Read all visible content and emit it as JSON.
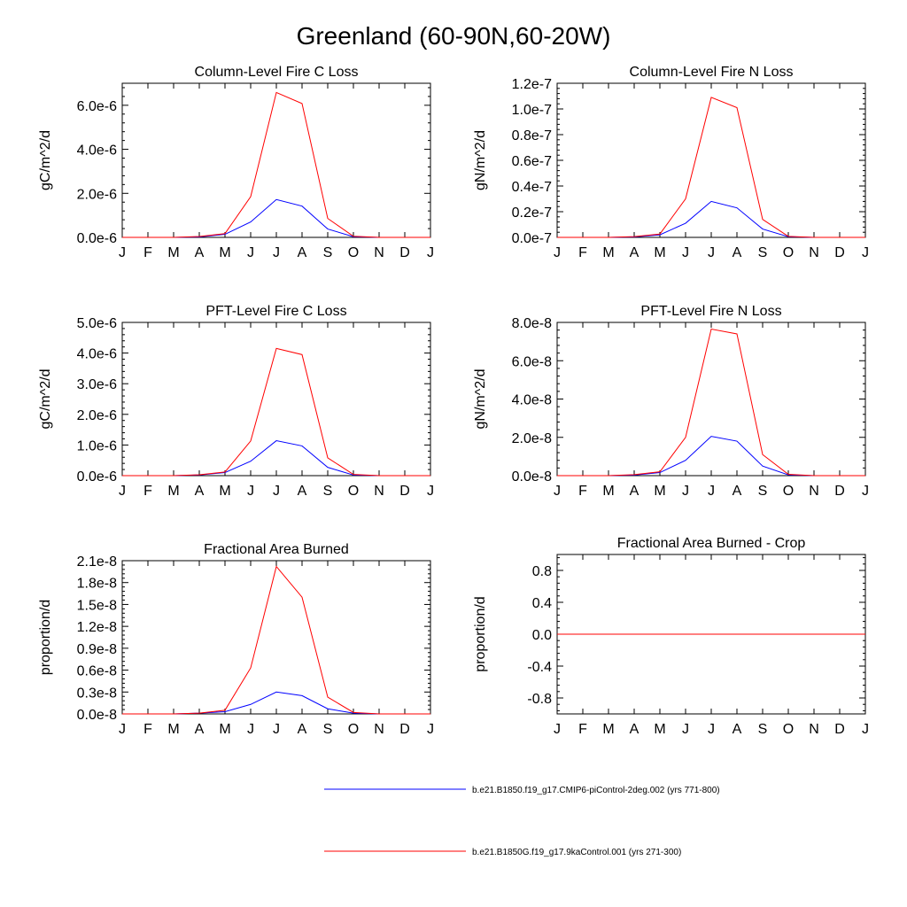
{
  "figure_title": "Greenland (60-90N,60-20W)",
  "colors": {
    "series_blue": "#0000ff",
    "series_red": "#ff0000",
    "axis": "#000000"
  },
  "legend": {
    "entries": [
      {
        "label": "b.e21.B1850.f19_g17.CMIP6-piControl-2deg.002 (yrs 771-800)",
        "color": "#0000ff"
      },
      {
        "label": "b.e21.B1850G.f19_g17.9kaControl.001 (yrs 271-300)",
        "color": "#ff0000"
      }
    ]
  },
  "chart_data": [
    {
      "type": "line",
      "title": "Column-Level Fire C Loss",
      "xlabel": "",
      "ylabel": "gC/m^2/d",
      "categories": [
        "J",
        "F",
        "M",
        "A",
        "M",
        "J",
        "J",
        "A",
        "S",
        "O",
        "N",
        "D",
        "J"
      ],
      "ylim": [
        0,
        7e-06
      ],
      "yticks": [
        0,
        2e-06,
        4e-06,
        6e-06
      ],
      "ytick_labels": [
        "0.0e-6",
        "2.0e-6",
        "4.0e-6",
        "6.0e-6"
      ],
      "series": [
        {
          "name": "b.e21.B1850.f19_g17.CMIP6-piControl-2deg.002 (yrs 771-800)",
          "color": "#0000ff",
          "values": [
            0,
            0,
            0,
            2e-08,
            1.4e-07,
            7e-07,
            1.72e-06,
            1.42e-06,
            3.8e-07,
            3e-08,
            0,
            0,
            0
          ]
        },
        {
          "name": "b.e21.B1850G.f19_g17.9kaControl.001 (yrs 271-300)",
          "color": "#ff0000",
          "values": [
            0,
            0,
            0,
            4e-08,
            1.7e-07,
            1.85e-06,
            6.58e-06,
            6.08e-06,
            8.6e-07,
            5e-08,
            0,
            0,
            0
          ]
        }
      ]
    },
    {
      "type": "line",
      "title": "Column-Level Fire N Loss",
      "xlabel": "",
      "ylabel": "gN/m^2/d",
      "categories": [
        "J",
        "F",
        "M",
        "A",
        "M",
        "J",
        "J",
        "A",
        "S",
        "O",
        "N",
        "D",
        "J"
      ],
      "ylim": [
        0,
        1.2e-07
      ],
      "yticks": [
        0,
        2e-08,
        4e-08,
        6e-08,
        8e-08,
        1e-07,
        1.2e-07
      ],
      "ytick_labels": [
        "0.0e-7",
        "0.2e-7",
        "0.4e-7",
        "0.6e-7",
        "0.8e-7",
        "1.0e-7",
        "1.2e-7"
      ],
      "series": [
        {
          "name": "b.e21.B1850.f19_g17.CMIP6-piControl-2deg.002 (yrs 771-800)",
          "color": "#0000ff",
          "values": [
            0,
            0,
            0,
            3e-10,
            2e-09,
            1.1e-08,
            2.8e-08,
            2.3e-08,
            6.5e-09,
            5e-10,
            0,
            0,
            0
          ]
        },
        {
          "name": "b.e21.B1850G.f19_g17.9kaControl.001 (yrs 271-300)",
          "color": "#ff0000",
          "values": [
            0,
            0,
            0,
            6e-10,
            2.6e-09,
            3e-08,
            1.09e-07,
            1.01e-07,
            1.4e-08,
            8e-10,
            0,
            0,
            0
          ]
        }
      ]
    },
    {
      "type": "line",
      "title": "PFT-Level Fire C Loss",
      "xlabel": "",
      "ylabel": "gC/m^2/d",
      "categories": [
        "J",
        "F",
        "M",
        "A",
        "M",
        "J",
        "J",
        "A",
        "S",
        "O",
        "N",
        "D",
        "J"
      ],
      "ylim": [
        0,
        5e-06
      ],
      "yticks": [
        0,
        1e-06,
        2e-06,
        3e-06,
        4e-06,
        5e-06
      ],
      "ytick_labels": [
        "0.0e-6",
        "1.0e-6",
        "2.0e-6",
        "3.0e-6",
        "4.0e-6",
        "5.0e-6"
      ],
      "series": [
        {
          "name": "b.e21.B1850.f19_g17.CMIP6-piControl-2deg.002 (yrs 771-800)",
          "color": "#0000ff",
          "values": [
            0,
            0,
            0,
            2e-08,
            1e-07,
            4.7e-07,
            1.14e-06,
            9.7e-07,
            2.7e-07,
            2e-08,
            0,
            0,
            0
          ]
        },
        {
          "name": "b.e21.B1850G.f19_g17.9kaControl.001 (yrs 271-300)",
          "color": "#ff0000",
          "values": [
            0,
            0,
            0,
            3e-08,
            1.2e-07,
            1.13e-06,
            4.15e-06,
            3.95e-06,
            5.8e-07,
            4e-08,
            0,
            0,
            0
          ]
        }
      ]
    },
    {
      "type": "line",
      "title": "PFT-Level Fire N Loss",
      "xlabel": "",
      "ylabel": "gN/m^2/d",
      "categories": [
        "J",
        "F",
        "M",
        "A",
        "M",
        "J",
        "J",
        "A",
        "S",
        "O",
        "N",
        "D",
        "J"
      ],
      "ylim": [
        0,
        8e-08
      ],
      "yticks": [
        0,
        2e-08,
        4e-08,
        6e-08,
        8e-08
      ],
      "ytick_labels": [
        "0.0e-8",
        "2.0e-8",
        "4.0e-8",
        "6.0e-8",
        "8.0e-8"
      ],
      "series": [
        {
          "name": "b.e21.B1850.f19_g17.CMIP6-piControl-2deg.002 (yrs 771-800)",
          "color": "#0000ff",
          "values": [
            0,
            0,
            0,
            3e-10,
            1.6e-09,
            8e-09,
            2.05e-08,
            1.8e-08,
            5e-09,
            4e-10,
            0,
            0,
            0
          ]
        },
        {
          "name": "b.e21.B1850G.f19_g17.9kaControl.001 (yrs 271-300)",
          "color": "#ff0000",
          "values": [
            0,
            0,
            0,
            5e-10,
            2e-09,
            2e-08,
            7.65e-08,
            7.4e-08,
            1.1e-08,
            7e-10,
            0,
            0,
            0
          ]
        }
      ]
    },
    {
      "type": "line",
      "title": "Fractional Area Burned",
      "xlabel": "",
      "ylabel": "proportion/d",
      "categories": [
        "J",
        "F",
        "M",
        "A",
        "M",
        "J",
        "J",
        "A",
        "S",
        "O",
        "N",
        "D",
        "J"
      ],
      "ylim": [
        0,
        2.1e-08
      ],
      "yticks": [
        0,
        3e-09,
        6e-09,
        9e-09,
        1.2e-08,
        1.5e-08,
        1.8e-08,
        2.1e-08
      ],
      "ytick_labels": [
        "0.0e-8",
        "0.3e-8",
        "0.6e-8",
        "0.9e-8",
        "1.2e-8",
        "1.5e-8",
        "1.8e-8",
        "2.1e-8"
      ],
      "series": [
        {
          "name": "b.e21.B1850.f19_g17.CMIP6-piControl-2deg.002 (yrs 771-800)",
          "color": "#0000ff",
          "values": [
            0,
            0,
            0,
            1e-10,
            3e-10,
            1.3e-09,
            3e-09,
            2.5e-09,
            7e-10,
            1e-10,
            0,
            0,
            0
          ]
        },
        {
          "name": "b.e21.B1850G.f19_g17.9kaControl.001 (yrs 271-300)",
          "color": "#ff0000",
          "values": [
            0,
            0,
            0,
            1e-10,
            5e-10,
            6.3e-09,
            2.02e-08,
            1.6e-08,
            2.3e-09,
            2e-10,
            0,
            0,
            0
          ]
        }
      ]
    },
    {
      "type": "line",
      "title": "Fractional Area Burned - Crop",
      "xlabel": "",
      "ylabel": "proportion/d",
      "categories": [
        "J",
        "F",
        "M",
        "A",
        "M",
        "J",
        "J",
        "A",
        "S",
        "O",
        "N",
        "D",
        "J"
      ],
      "ylim": [
        -1.0,
        1.0
      ],
      "yticks": [
        -0.8,
        -0.4,
        0.0,
        0.4,
        0.8
      ],
      "ytick_labels": [
        "-0.8",
        "-0.4",
        "0.0",
        "0.4",
        "0.8"
      ],
      "series": [
        {
          "name": "b.e21.B1850.f19_g17.CMIP6-piControl-2deg.002 (yrs 771-800)",
          "color": "#0000ff",
          "values": [
            0,
            0,
            0,
            0,
            0,
            0,
            0,
            0,
            0,
            0,
            0,
            0,
            0
          ]
        },
        {
          "name": "b.e21.B1850G.f19_g17.9kaControl.001 (yrs 271-300)",
          "color": "#ff0000",
          "values": [
            0,
            0,
            0,
            0,
            0,
            0,
            0,
            0,
            0,
            0,
            0,
            0,
            0
          ]
        }
      ]
    }
  ]
}
